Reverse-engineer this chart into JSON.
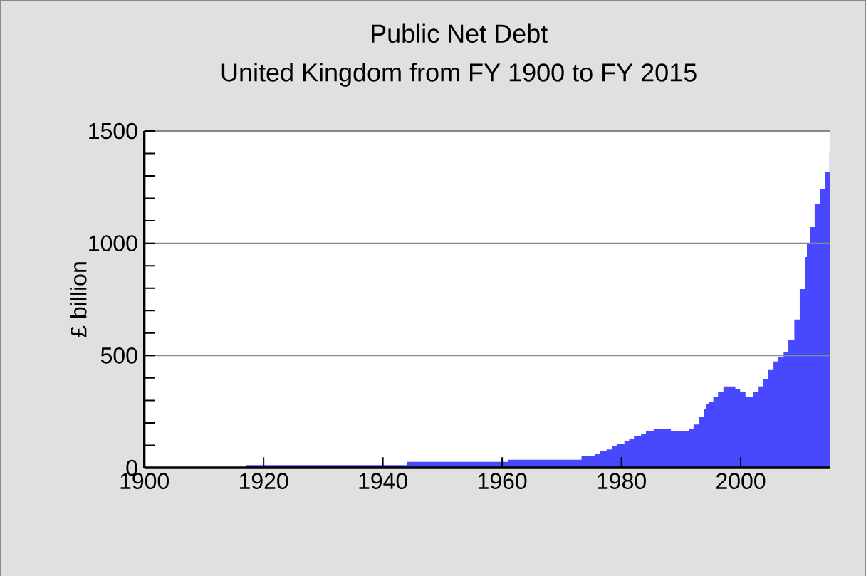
{
  "chart_data": {
    "type": "area",
    "title": "Public Net Debt",
    "subtitle": "United Kingdom from FY 1900 to FY 2015",
    "ylabel": "£ billion",
    "color": "#4848ff",
    "x": [
      1900,
      1917,
      1944,
      1961,
      1973.3,
      1975.5,
      1976.4,
      1977.5,
      1978.4,
      1979.2,
      1980.5,
      1981.3,
      1982.1,
      1983.3,
      1984.1,
      1985.4,
      1988.3,
      1991.3,
      1992.1,
      1993,
      1993.8,
      1994.2,
      1994.6,
      1995.4,
      1996.2,
      1997.1,
      1999.1,
      1999.9,
      2000.8,
      2002.1,
      2003,
      2003.8,
      2004.6,
      2005.5,
      2006.3,
      2007.2,
      2008,
      2009,
      2009.9,
      2010.8,
      2011.1,
      2011.6,
      2012.4,
      2013.3,
      2014.1,
      2014.9,
      2015
    ],
    "values": [
      0,
      12,
      26,
      36,
      51,
      60,
      73,
      82,
      95,
      105,
      117,
      127,
      140,
      149,
      162,
      171,
      162,
      171,
      193,
      228,
      260,
      282,
      295,
      317,
      339,
      362,
      349,
      339,
      317,
      339,
      362,
      393,
      438,
      473,
      495,
      517,
      571,
      660,
      796,
      939,
      998,
      1072,
      1173,
      1240,
      1316,
      1405,
      1405
    ],
    "xlim": [
      1900,
      2015
    ],
    "ylim": [
      0,
      1500
    ],
    "xticks": [
      1900,
      1920,
      1940,
      1960,
      1980,
      2000
    ],
    "yticks": [
      0,
      {
        "value": 100,
        "label": null
      },
      {
        "value": 200,
        "label": null
      },
      {
        "value": 300,
        "label": null
      },
      {
        "value": 400,
        "label": null
      },
      500,
      {
        "value": 600,
        "label": null
      },
      {
        "value": 700,
        "label": null
      },
      {
        "value": 800,
        "label": null
      },
      {
        "value": 900,
        "label": null
      },
      1000,
      {
        "value": 1100,
        "label": null
      },
      {
        "value": 1200,
        "label": null
      },
      {
        "value": 1300,
        "label": null
      },
      {
        "value": 1400,
        "label": null
      },
      1500
    ],
    "grid": "y"
  }
}
